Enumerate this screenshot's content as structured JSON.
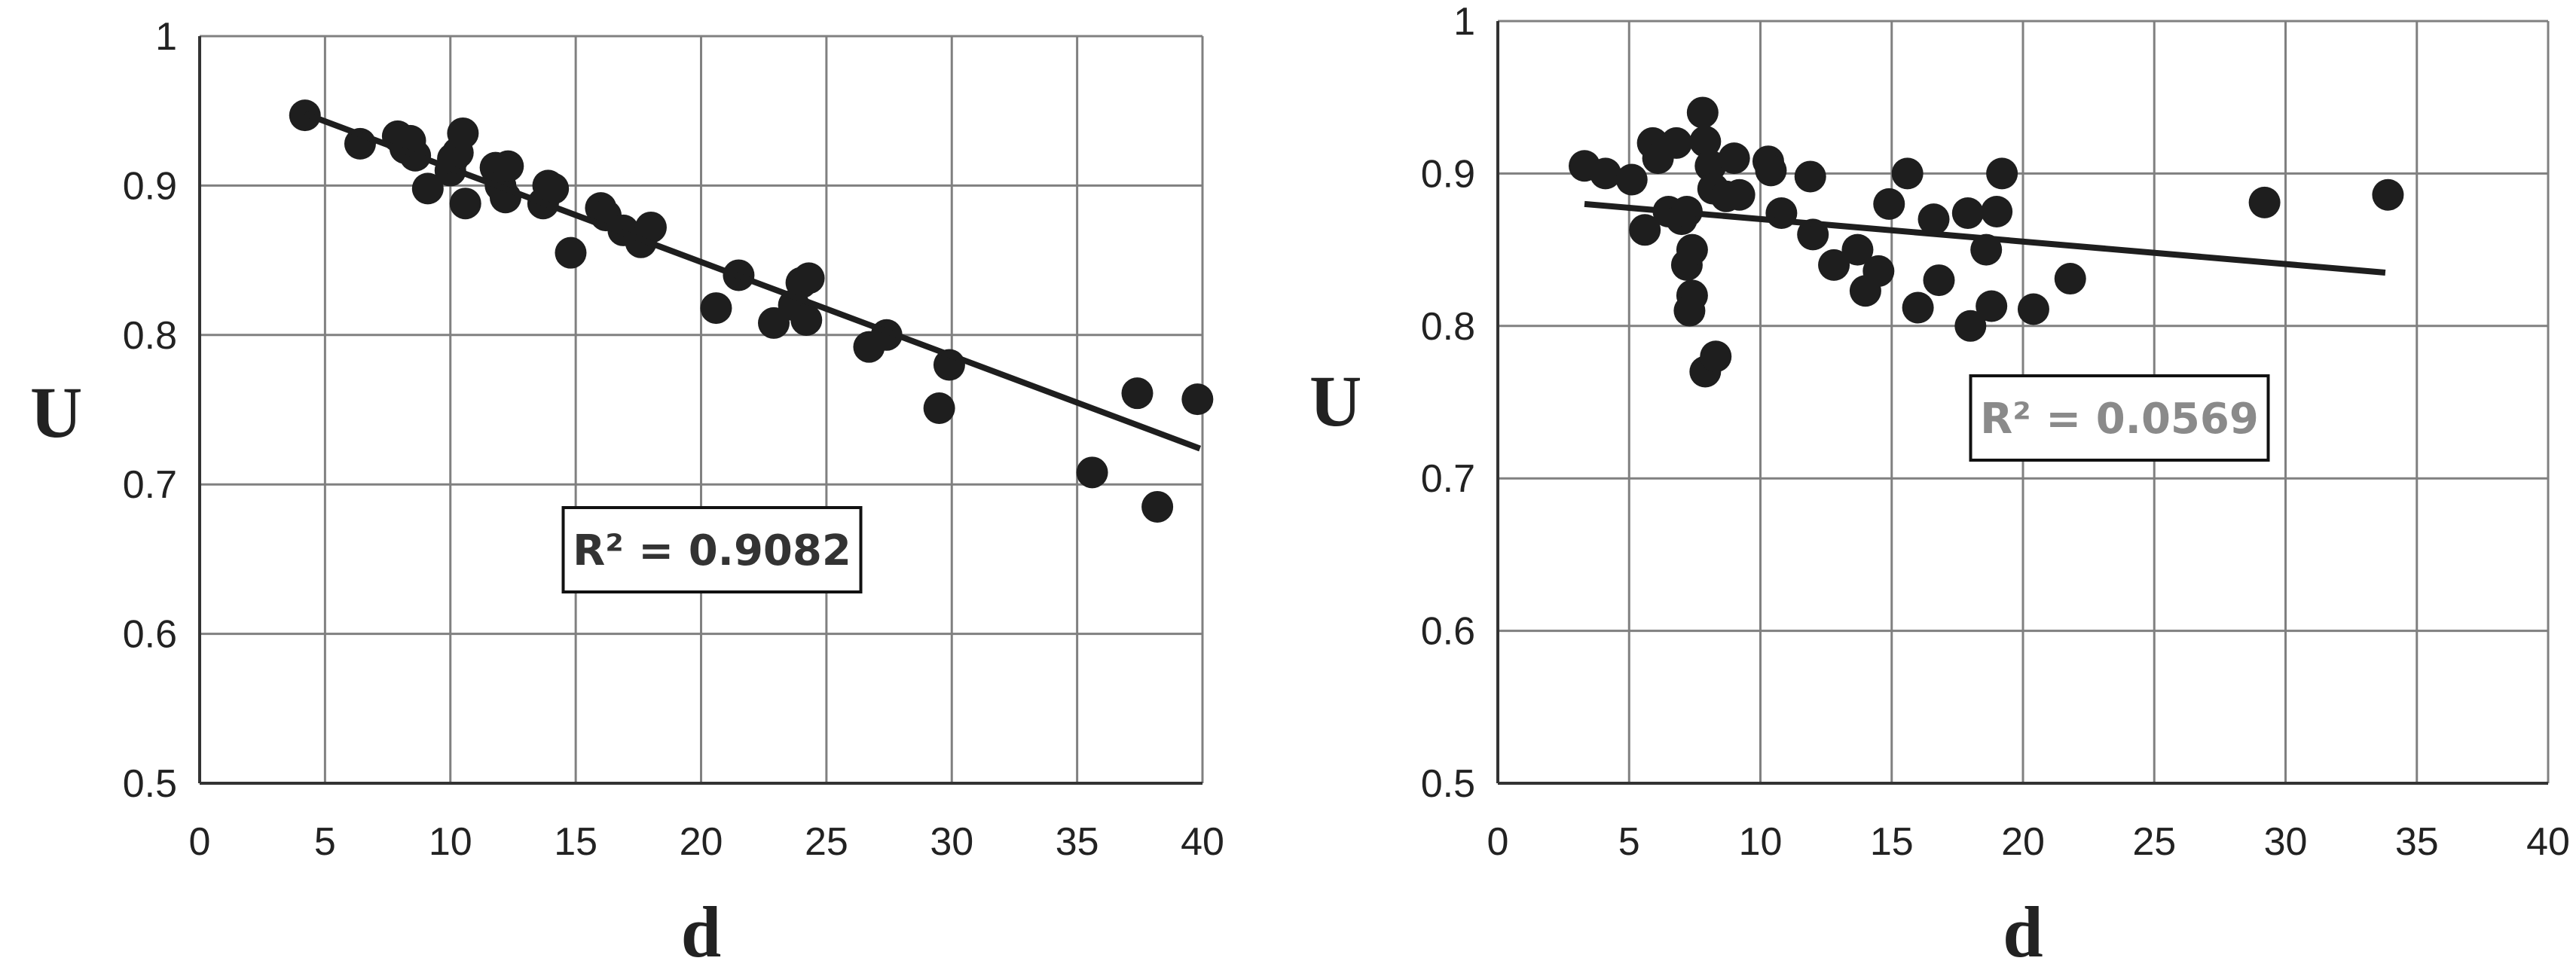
{
  "colors": {
    "background": "#ffffff",
    "grid": "#808080",
    "axis": "#333333",
    "points": "#1e1e1e",
    "trendline": "#1e1e1e",
    "text": "#222222"
  },
  "chart_data": [
    {
      "type": "scatter",
      "title": "",
      "xlabel": "d",
      "ylabel": "U",
      "xlim": [
        0,
        40
      ],
      "ylim": [
        0.5,
        1
      ],
      "xticks": [
        "0",
        "5",
        "10",
        "15",
        "20",
        "25",
        "30",
        "35",
        "40"
      ],
      "yticks": [
        "0.5",
        "0.6",
        "0.7",
        "0.8",
        "0.9",
        "1"
      ],
      "grid": true,
      "trendline": {
        "x": [
          4.2,
          39.9
        ],
        "y": [
          0.948,
          0.724
        ]
      },
      "r2_label": "R² = 0.9082",
      "r2_color": "#333333",
      "points": [
        {
          "x": 4.2,
          "y": 0.947
        },
        {
          "x": 6.4,
          "y": 0.928
        },
        {
          "x": 7.9,
          "y": 0.933
        },
        {
          "x": 8.2,
          "y": 0.925
        },
        {
          "x": 8.4,
          "y": 0.93
        },
        {
          "x": 8.6,
          "y": 0.92
        },
        {
          "x": 9.1,
          "y": 0.898
        },
        {
          "x": 10.0,
          "y": 0.91
        },
        {
          "x": 10.1,
          "y": 0.918
        },
        {
          "x": 10.3,
          "y": 0.922
        },
        {
          "x": 10.5,
          "y": 0.935
        },
        {
          "x": 10.6,
          "y": 0.888
        },
        {
          "x": 11.8,
          "y": 0.912
        },
        {
          "x": 12.0,
          "y": 0.9
        },
        {
          "x": 12.2,
          "y": 0.892
        },
        {
          "x": 12.3,
          "y": 0.913
        },
        {
          "x": 13.7,
          "y": 0.888
        },
        {
          "x": 13.9,
          "y": 0.9
        },
        {
          "x": 14.1,
          "y": 0.898
        },
        {
          "x": 14.8,
          "y": 0.855
        },
        {
          "x": 16.0,
          "y": 0.885
        },
        {
          "x": 16.2,
          "y": 0.88
        },
        {
          "x": 16.9,
          "y": 0.87
        },
        {
          "x": 17.6,
          "y": 0.862
        },
        {
          "x": 18.0,
          "y": 0.872
        },
        {
          "x": 20.6,
          "y": 0.818
        },
        {
          "x": 21.5,
          "y": 0.84
        },
        {
          "x": 22.9,
          "y": 0.808
        },
        {
          "x": 23.7,
          "y": 0.82
        },
        {
          "x": 24.0,
          "y": 0.835
        },
        {
          "x": 24.2,
          "y": 0.81
        },
        {
          "x": 24.3,
          "y": 0.838
        },
        {
          "x": 26.7,
          "y": 0.792
        },
        {
          "x": 27.4,
          "y": 0.8
        },
        {
          "x": 29.5,
          "y": 0.751
        },
        {
          "x": 29.9,
          "y": 0.78
        },
        {
          "x": 35.6,
          "y": 0.708
        },
        {
          "x": 37.4,
          "y": 0.761
        },
        {
          "x": 38.2,
          "y": 0.685
        },
        {
          "x": 39.8,
          "y": 0.757
        }
      ]
    },
    {
      "type": "scatter",
      "title": "",
      "xlabel": "d",
      "ylabel": "U",
      "xlim": [
        0,
        40
      ],
      "ylim": [
        0.5,
        1
      ],
      "xticks": [
        "0",
        "5",
        "10",
        "15",
        "20",
        "25",
        "30",
        "35",
        "40"
      ],
      "yticks": [
        "0.5",
        "0.6",
        "0.7",
        "0.8",
        "0.9",
        "1"
      ],
      "grid": true,
      "trendline": {
        "x": [
          3.3,
          33.8
        ],
        "y": [
          0.88,
          0.835
        ]
      },
      "r2_label": "R² = 0.0569",
      "r2_color": "#8a8a8a",
      "points": [
        {
          "x": 3.3,
          "y": 0.905
        },
        {
          "x": 4.1,
          "y": 0.9
        },
        {
          "x": 5.1,
          "y": 0.896
        },
        {
          "x": 5.6,
          "y": 0.863
        },
        {
          "x": 5.9,
          "y": 0.92
        },
        {
          "x": 6.1,
          "y": 0.91
        },
        {
          "x": 6.5,
          "y": 0.875
        },
        {
          "x": 6.8,
          "y": 0.92
        },
        {
          "x": 7.0,
          "y": 0.87
        },
        {
          "x": 7.2,
          "y": 0.875
        },
        {
          "x": 7.2,
          "y": 0.84
        },
        {
          "x": 7.4,
          "y": 0.85
        },
        {
          "x": 7.4,
          "y": 0.82
        },
        {
          "x": 7.3,
          "y": 0.81
        },
        {
          "x": 7.8,
          "y": 0.94
        },
        {
          "x": 7.9,
          "y": 0.921
        },
        {
          "x": 8.1,
          "y": 0.905
        },
        {
          "x": 8.2,
          "y": 0.89
        },
        {
          "x": 7.9,
          "y": 0.77
        },
        {
          "x": 8.3,
          "y": 0.78
        },
        {
          "x": 8.7,
          "y": 0.885
        },
        {
          "x": 9.0,
          "y": 0.91
        },
        {
          "x": 9.2,
          "y": 0.886
        },
        {
          "x": 10.3,
          "y": 0.908
        },
        {
          "x": 10.4,
          "y": 0.902
        },
        {
          "x": 10.8,
          "y": 0.874
        },
        {
          "x": 11.9,
          "y": 0.898
        },
        {
          "x": 12.0,
          "y": 0.86
        },
        {
          "x": 12.8,
          "y": 0.84
        },
        {
          "x": 13.7,
          "y": 0.85
        },
        {
          "x": 14.0,
          "y": 0.823
        },
        {
          "x": 14.5,
          "y": 0.836
        },
        {
          "x": 14.9,
          "y": 0.88
        },
        {
          "x": 15.6,
          "y": 0.9
        },
        {
          "x": 16.0,
          "y": 0.812
        },
        {
          "x": 16.6,
          "y": 0.87
        },
        {
          "x": 16.8,
          "y": 0.83
        },
        {
          "x": 17.9,
          "y": 0.874
        },
        {
          "x": 18.0,
          "y": 0.8
        },
        {
          "x": 18.6,
          "y": 0.85
        },
        {
          "x": 18.8,
          "y": 0.813
        },
        {
          "x": 19.0,
          "y": 0.875
        },
        {
          "x": 19.2,
          "y": 0.9
        },
        {
          "x": 20.4,
          "y": 0.811
        },
        {
          "x": 21.8,
          "y": 0.831
        },
        {
          "x": 29.2,
          "y": 0.881
        },
        {
          "x": 33.9,
          "y": 0.886
        }
      ]
    }
  ]
}
